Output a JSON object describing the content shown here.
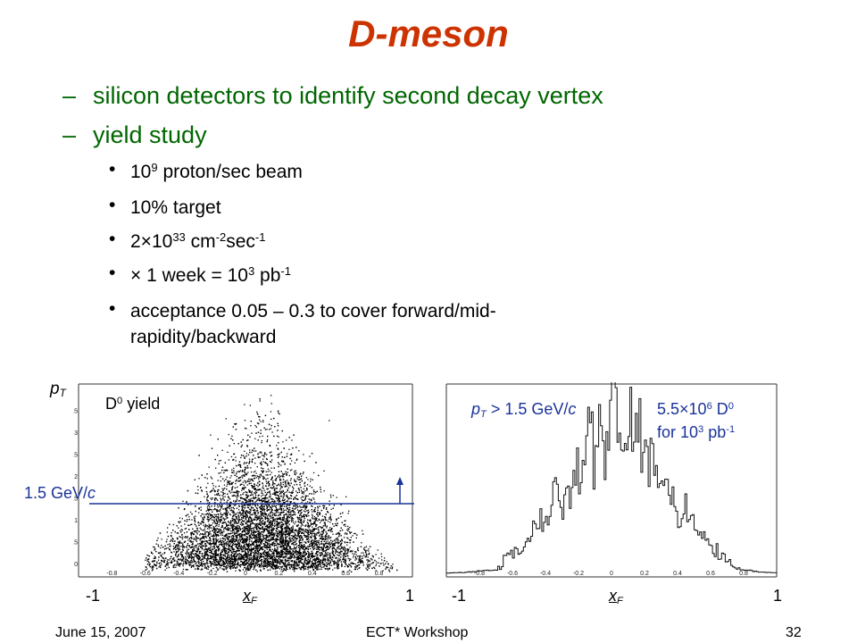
{
  "title": "D-meson",
  "level1": [
    "silicon detectors to identify second decay vertex",
    "yield study"
  ],
  "dash": "–",
  "bullet": "•",
  "bullets": {
    "b1": {
      "base": "10",
      "exp": "9",
      "rest": " proton/sec beam"
    },
    "b2": {
      "text": "10% target"
    },
    "b3": {
      "a": "2×10",
      "a_exp": "33",
      "b": " cm",
      "b_exp": "-2",
      "c": "sec",
      "c_exp": "-1"
    },
    "b4": {
      "a": "× 1 week = 10",
      "a_exp": "3",
      "b": " pb",
      "b_exp": "-1"
    },
    "b5": {
      "line1": "acceptance 0.05 – 0.3 to cover forward/mid-",
      "line2": "rapidity/backward"
    }
  },
  "plot_left": {
    "y_label": {
      "base": "p",
      "sub": "T"
    },
    "inside_label": {
      "base": "D",
      "exp": "0",
      "rest": " yield"
    },
    "cut_label": {
      "a": "1.5 GeV/",
      "b": "c"
    },
    "x_label": {
      "base": "x",
      "sub": "F"
    },
    "x_min_label": "-1",
    "x_max_label": "1",
    "x_ticks": [
      "-0.8",
      "-0.6",
      "-0.4",
      "-0.2",
      "0",
      "0.2",
      "0.4",
      "0.6",
      "0.8"
    ],
    "y_ticks": [
      "0",
      "0.5",
      "1",
      "1.5",
      "2",
      "2.5",
      "3",
      "3.5"
    ]
  },
  "plot_right": {
    "cut": {
      "base": "p",
      "sub": "T",
      "a": " > 1.5 GeV/",
      "b": "c"
    },
    "count": {
      "a": "5.5×10",
      "a_exp": "6",
      "b": " D",
      "b_exp": "0"
    },
    "lumi": {
      "a": "for 10",
      "a_exp": "3",
      "b": " pb",
      "b_exp": "-1"
    },
    "x_label": {
      "base": "x",
      "sub": "F"
    },
    "x_min_label": "-1",
    "x_max_label": "1",
    "x_ticks": [
      "-0.8",
      "-0.6",
      "-0.4",
      "-0.2",
      "0",
      "0.2",
      "0.4",
      "0.6",
      "0.8"
    ]
  },
  "footer": {
    "date": "June 15, 2007",
    "event": "ECT* Workshop",
    "page": "32"
  },
  "colors": {
    "title": "#cc3300",
    "level1": "#006600",
    "cut_line": "#1a3399"
  }
}
